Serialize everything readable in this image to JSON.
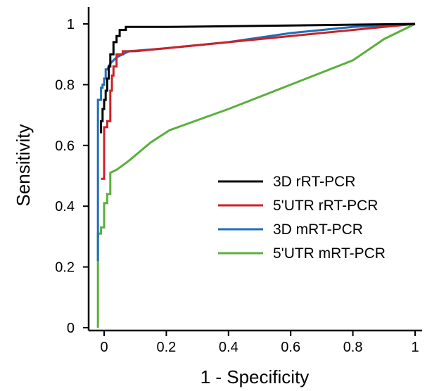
{
  "chart_data": {
    "type": "line",
    "title": "",
    "xlabel": "1 - Specificity",
    "ylabel": "Sensitivity",
    "xlim": [
      -0.05,
      1.0
    ],
    "ylim": [
      0,
      1.03
    ],
    "xticks": [
      0,
      0.2,
      0.4,
      0.6,
      0.8,
      1
    ],
    "xtick_labels": [
      "0",
      "0.2",
      "0.4",
      "0.6",
      "0.8",
      "1"
    ],
    "yticks": [
      0,
      0.2,
      0.4,
      0.6,
      0.8,
      1
    ],
    "ytick_labels": [
      "0",
      "0.2",
      "0.4",
      "0.6",
      "0.8",
      "1"
    ],
    "grid": false,
    "legend_position": "lower-right",
    "series": [
      {
        "name": "3D rRT-PCR",
        "color": "#000000",
        "points": [
          [
            -0.01,
            0.64
          ],
          [
            -0.01,
            0.68
          ],
          [
            -0.005,
            0.68
          ],
          [
            -0.005,
            0.72
          ],
          [
            0,
            0.72
          ],
          [
            0,
            0.75
          ],
          [
            0.005,
            0.75
          ],
          [
            0.005,
            0.78
          ],
          [
            0.01,
            0.78
          ],
          [
            0.01,
            0.82
          ],
          [
            0.015,
            0.82
          ],
          [
            0.015,
            0.86
          ],
          [
            0.02,
            0.86
          ],
          [
            0.02,
            0.9
          ],
          [
            0.03,
            0.9
          ],
          [
            0.03,
            0.94
          ],
          [
            0.04,
            0.94
          ],
          [
            0.04,
            0.96
          ],
          [
            0.05,
            0.96
          ],
          [
            0.05,
            0.98
          ],
          [
            0.07,
            0.98
          ],
          [
            0.07,
            0.99
          ],
          [
            0.2,
            0.99
          ],
          [
            0.6,
            0.995
          ],
          [
            1.0,
            1.0
          ]
        ]
      },
      {
        "name": "5'UTR rRT-PCR",
        "color": "#cc2127",
        "points": [
          [
            -0.01,
            0.49
          ],
          [
            0,
            0.49
          ],
          [
            0,
            0.66
          ],
          [
            0.01,
            0.66
          ],
          [
            0.01,
            0.68
          ],
          [
            0.02,
            0.68
          ],
          [
            0.02,
            0.78
          ],
          [
            0.025,
            0.78
          ],
          [
            0.025,
            0.83
          ],
          [
            0.03,
            0.83
          ],
          [
            0.03,
            0.86
          ],
          [
            0.04,
            0.86
          ],
          [
            0.04,
            0.9
          ],
          [
            0.06,
            0.9
          ],
          [
            0.06,
            0.91
          ],
          [
            0.1,
            0.91
          ],
          [
            0.3,
            0.93
          ],
          [
            0.6,
            0.96
          ],
          [
            0.9,
            0.99
          ],
          [
            1.0,
            1.0
          ]
        ]
      },
      {
        "name": "3D mRT-PCR",
        "color": "#1e6fb8",
        "points": [
          [
            -0.02,
            0.22
          ],
          [
            -0.02,
            0.75
          ],
          [
            -0.01,
            0.75
          ],
          [
            -0.01,
            0.79
          ],
          [
            -0.005,
            0.79
          ],
          [
            -0.005,
            0.8
          ],
          [
            0,
            0.8
          ],
          [
            0,
            0.82
          ],
          [
            0.005,
            0.82
          ],
          [
            0.005,
            0.85
          ],
          [
            0.01,
            0.85
          ],
          [
            0.02,
            0.87
          ],
          [
            0.04,
            0.89
          ],
          [
            0.08,
            0.91
          ],
          [
            0.2,
            0.92
          ],
          [
            0.4,
            0.94
          ],
          [
            0.6,
            0.97
          ],
          [
            0.8,
            0.99
          ],
          [
            1.0,
            1.0
          ]
        ]
      },
      {
        "name": "5'UTR mRT-PCR",
        "color": "#5ab03c",
        "points": [
          [
            -0.02,
            0
          ],
          [
            -0.02,
            0.31
          ],
          [
            -0.01,
            0.31
          ],
          [
            -0.01,
            0.33
          ],
          [
            0,
            0.33
          ],
          [
            0,
            0.41
          ],
          [
            0.01,
            0.41
          ],
          [
            0.01,
            0.44
          ],
          [
            0.02,
            0.44
          ],
          [
            0.02,
            0.51
          ],
          [
            0.04,
            0.52
          ],
          [
            0.08,
            0.55
          ],
          [
            0.15,
            0.61
          ],
          [
            0.21,
            0.65
          ],
          [
            0.4,
            0.72
          ],
          [
            0.6,
            0.8
          ],
          [
            0.8,
            0.88
          ],
          [
            0.9,
            0.95
          ],
          [
            1.0,
            1.0
          ]
        ]
      }
    ]
  }
}
